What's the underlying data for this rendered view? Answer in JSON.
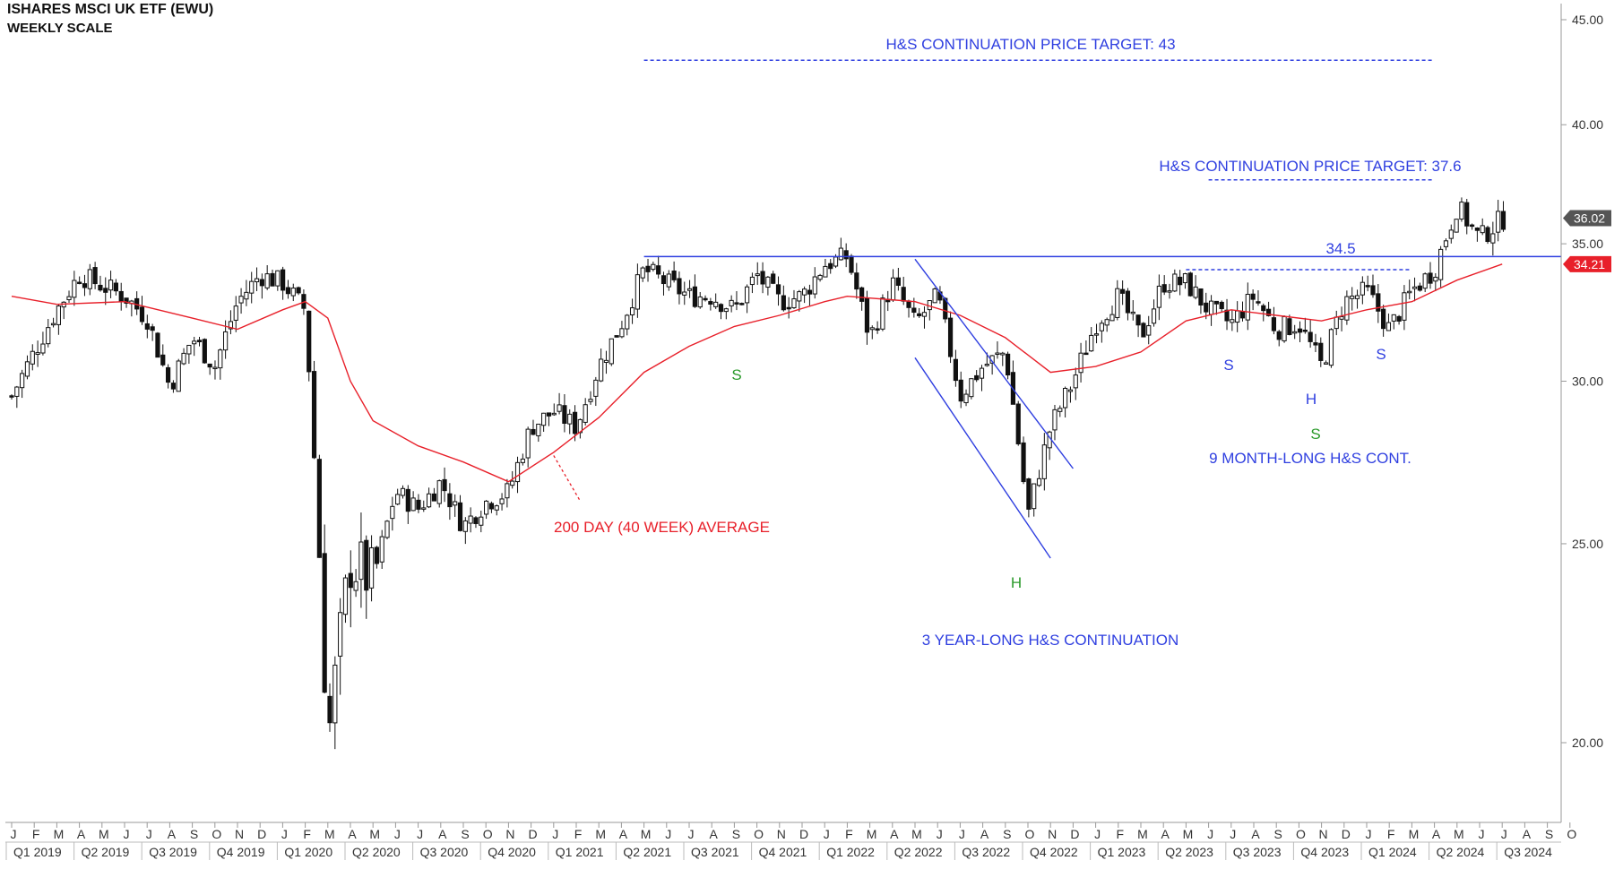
{
  "header": {
    "title": "ISHARES MSCI UK ETF (EWU)",
    "subtitle": "WEEKLY SCALE"
  },
  "colors": {
    "blue": "#2f3fe0",
    "red": "#e8202a",
    "green": "#2a9a2a",
    "candle": "#111111",
    "grid": "#cccccc"
  },
  "chart_data": {
    "type": "candlestick",
    "title": "ISHARES MSCI UK ETF (EWU)",
    "subtitle": "WEEKLY SCALE",
    "y_scale": "log",
    "ylim": [
      18.2,
      46.2
    ],
    "y_ticks": [
      "20.00",
      "25.00",
      "30.00",
      "35.00",
      "40.00",
      "45.00"
    ],
    "x_range": [
      "2019-01",
      "2024-10"
    ],
    "month_labels": [
      "J",
      "F",
      "M",
      "A",
      "M",
      "J",
      "J",
      "A",
      "S",
      "O",
      "N",
      "D",
      "J",
      "F",
      "M",
      "A",
      "M",
      "J",
      "J",
      "A",
      "S",
      "O",
      "N",
      "D",
      "J",
      "F",
      "M",
      "A",
      "M",
      "J",
      "J",
      "A",
      "S",
      "O",
      "N",
      "D",
      "J",
      "F",
      "M",
      "A",
      "M",
      "J",
      "J",
      "A",
      "S",
      "O",
      "N",
      "D",
      "J",
      "F",
      "M",
      "A",
      "M",
      "J",
      "J",
      "A",
      "S",
      "O",
      "N",
      "D",
      "J",
      "F",
      "M",
      "A",
      "M",
      "J",
      "J",
      "A",
      "S",
      "O"
    ],
    "quarter_labels": [
      "Q1 2019",
      "Q2 2019",
      "Q3 2019",
      "Q4 2019",
      "Q1 2020",
      "Q2 2020",
      "Q3 2020",
      "Q4 2020",
      "Q1 2021",
      "Q2 2021",
      "Q3 2021",
      "Q4 2021",
      "Q1 2022",
      "Q2 2022",
      "Q3 2022",
      "Q4 2022",
      "Q1 2023",
      "Q2 2023",
      "Q3 2023",
      "Q4 2023",
      "Q1 2024",
      "Q2 2024",
      "Q3 2024"
    ],
    "price_path": [
      [
        "2019-01",
        29.5
      ],
      [
        "2019-03",
        32.5
      ],
      [
        "2019-04",
        33.8
      ],
      [
        "2019-06",
        33.0
      ],
      [
        "2019-07",
        32.2
      ],
      [
        "2019-08",
        29.8
      ],
      [
        "2019-09",
        31.5
      ],
      [
        "2019-10",
        30.5
      ],
      [
        "2019-11",
        32.8
      ],
      [
        "2019-12",
        33.8
      ],
      [
        "2020-01",
        33.5
      ],
      [
        "2020-02",
        32.5
      ],
      [
        "2020-03",
        20.0
      ],
      [
        "2020-04",
        24.5
      ],
      [
        "2020-05",
        24.0
      ],
      [
        "2020-06",
        26.5
      ],
      [
        "2020-07",
        26.0
      ],
      [
        "2020-08",
        26.8
      ],
      [
        "2020-09",
        25.5
      ],
      [
        "2020-10",
        26.2
      ],
      [
        "2020-11",
        26.5
      ],
      [
        "2020-12",
        28.5
      ],
      [
        "2021-01",
        29.0
      ],
      [
        "2021-02",
        28.5
      ],
      [
        "2021-03",
        30.5
      ],
      [
        "2021-04",
        32.0
      ],
      [
        "2021-05",
        34.0
      ],
      [
        "2021-06",
        33.5
      ],
      [
        "2021-07",
        33.0
      ],
      [
        "2021-08",
        33.0
      ],
      [
        "2021-09",
        32.5
      ],
      [
        "2021-10",
        33.8
      ],
      [
        "2021-11",
        32.8
      ],
      [
        "2021-12",
        33.0
      ],
      [
        "2022-01",
        34.2
      ],
      [
        "2022-02",
        34.5
      ],
      [
        "2022-03",
        31.5
      ],
      [
        "2022-04",
        33.5
      ],
      [
        "2022-05",
        32.0
      ],
      [
        "2022-06",
        33.0
      ],
      [
        "2022-07",
        29.5
      ],
      [
        "2022-08",
        30.5
      ],
      [
        "2022-09",
        31.0
      ],
      [
        "2022-10",
        25.8
      ],
      [
        "2022-11",
        28.5
      ],
      [
        "2022-12",
        30.0
      ],
      [
        "2023-01",
        32.0
      ],
      [
        "2023-02",
        33.0
      ],
      [
        "2023-03",
        31.5
      ],
      [
        "2023-04",
        33.5
      ],
      [
        "2023-05",
        33.5
      ],
      [
        "2023-06",
        32.5
      ],
      [
        "2023-07",
        32.0
      ],
      [
        "2023-08",
        33.0
      ],
      [
        "2023-09",
        31.8
      ],
      [
        "2023-10",
        32.0
      ],
      [
        "2023-11",
        30.5
      ],
      [
        "2023-12",
        32.8
      ],
      [
        "2024-01",
        33.2
      ],
      [
        "2024-02",
        31.8
      ],
      [
        "2024-03",
        33.2
      ],
      [
        "2024-04",
        34.0
      ],
      [
        "2024-05",
        36.5
      ],
      [
        "2024-06",
        35.2
      ],
      [
        "2024-07",
        36.0
      ]
    ],
    "moving_average": {
      "name": "200 DAY (40 WEEK) AVERAGE",
      "points": [
        [
          "2019-01",
          33.0
        ],
        [
          "2019-03",
          32.7
        ],
        [
          "2019-06",
          32.8
        ],
        [
          "2019-09",
          32.2
        ],
        [
          "2019-11",
          31.8
        ],
        [
          "2020-01",
          32.5
        ],
        [
          "2020-02",
          32.8
        ],
        [
          "2020-03",
          32.2
        ],
        [
          "2020-04",
          30.0
        ],
        [
          "2020-05",
          28.7
        ],
        [
          "2020-07",
          27.9
        ],
        [
          "2020-09",
          27.4
        ],
        [
          "2020-11",
          26.8
        ],
        [
          "2021-01",
          27.7
        ],
        [
          "2021-03",
          28.8
        ],
        [
          "2021-05",
          30.3
        ],
        [
          "2021-07",
          31.2
        ],
        [
          "2021-09",
          31.9
        ],
        [
          "2021-11",
          32.3
        ],
        [
          "2022-01",
          32.8
        ],
        [
          "2022-02",
          33.0
        ],
        [
          "2022-05",
          32.8
        ],
        [
          "2022-07",
          32.3
        ],
        [
          "2022-09",
          31.5
        ],
        [
          "2022-11",
          30.3
        ],
        [
          "2023-01",
          30.5
        ],
        [
          "2023-03",
          31.0
        ],
        [
          "2023-05",
          32.1
        ],
        [
          "2023-07",
          32.5
        ],
        [
          "2023-09",
          32.3
        ],
        [
          "2023-11",
          32.1
        ],
        [
          "2024-01",
          32.5
        ],
        [
          "2024-03",
          32.8
        ],
        [
          "2024-05",
          33.6
        ],
        [
          "2024-07",
          34.21
        ]
      ]
    },
    "lines": {
      "neckline": {
        "value": 34.5,
        "from": "2021-05",
        "to": "2024-09",
        "label": "34.5"
      },
      "small_neckline": {
        "value": 34.0,
        "from": "2023-05",
        "to": "2024-03"
      },
      "target_43": {
        "value": 43,
        "from": "2021-05",
        "to": "2024-04",
        "label": "H&S CONTINUATION PRICE TARGET: 43"
      },
      "target_37_6": {
        "value": 37.6,
        "from": "2023-06",
        "to": "2024-04",
        "label": "H&S CONTINUATION PRICE TARGET: 37.6"
      },
      "channel_upper": [
        [
          "2022-05",
          34.4
        ],
        [
          "2022-12",
          27.2
        ]
      ],
      "channel_lower": [
        [
          "2022-05",
          30.8
        ],
        [
          "2022-11",
          24.6
        ]
      ]
    },
    "price_labels": {
      "last": "36.02",
      "ma": "34.21"
    },
    "annotations": {
      "ma_label": "200 DAY (40 WEEK) AVERAGE",
      "pattern_3yr": "3 YEAR-LONG H&S CONTINUATION",
      "pattern_9m": "9 MONTH-LONG H&S CONT.",
      "s_left_large": "S",
      "h_large": "H",
      "s_right_small": "S",
      "s_left_small": "S",
      "h_small": "H",
      "s_right_small2": "S"
    }
  }
}
